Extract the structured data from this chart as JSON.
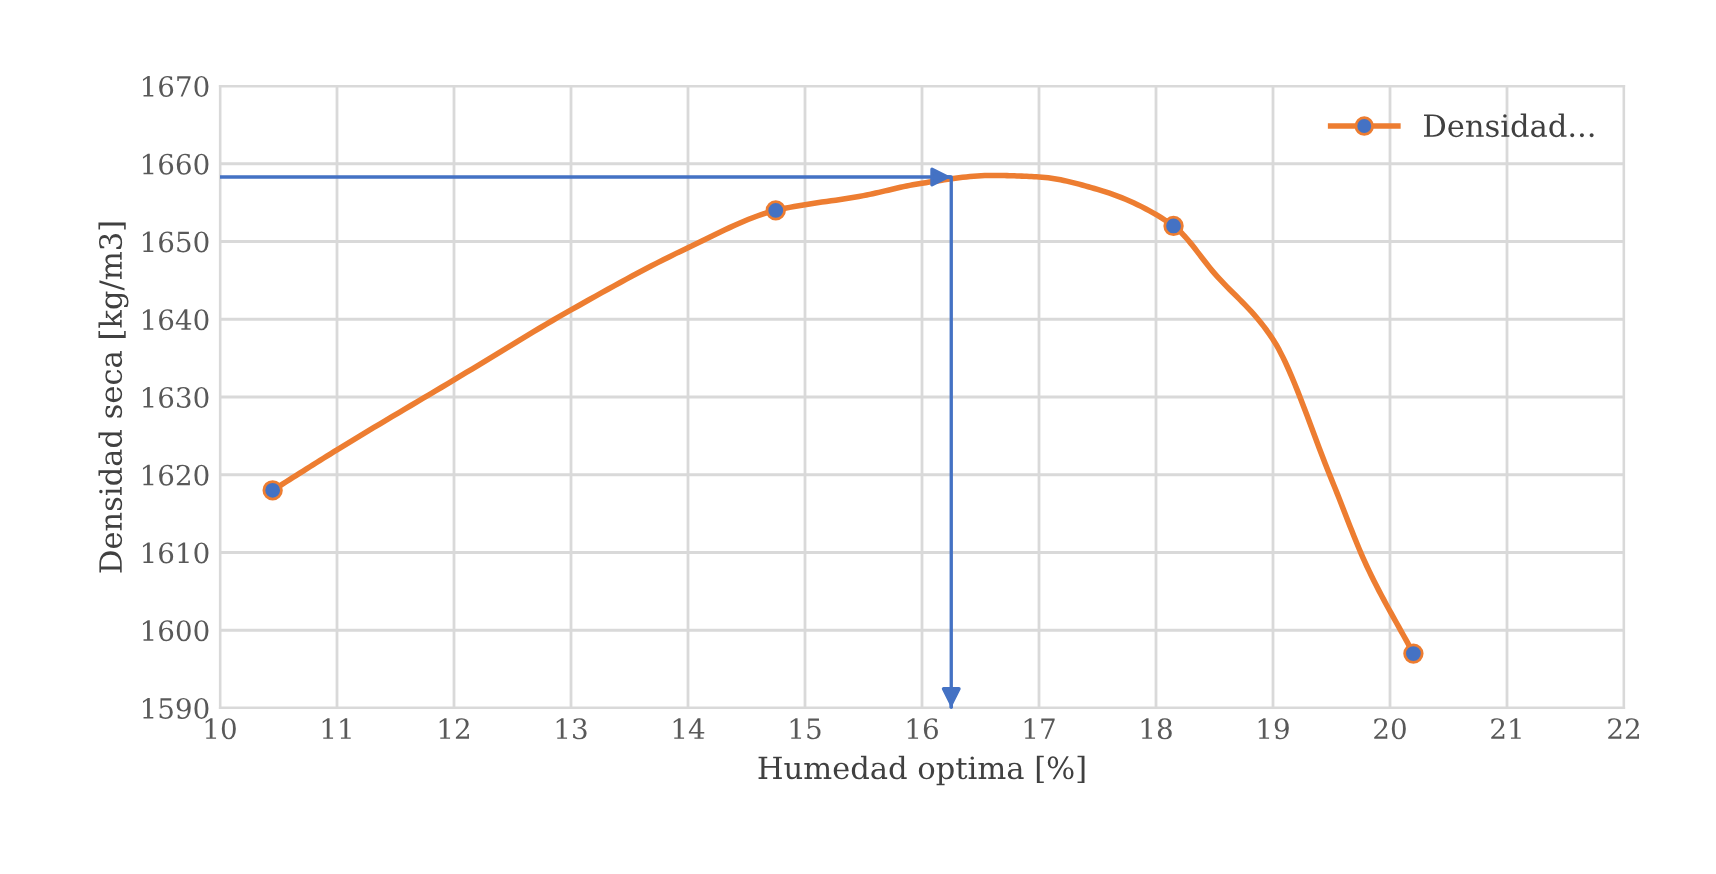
{
  "chart_data": {
    "type": "line",
    "xlabel": "Humedad optima [%]",
    "ylabel": "Densidad seca [kg/m3]",
    "series": [
      {
        "name": "Densidad...",
        "color": "#ed7d31",
        "marker": "none",
        "x": [
          10.45,
          11,
          12,
          13,
          14,
          14.75,
          15.5,
          16,
          16.6,
          17,
          17.5,
          18.15,
          18.5,
          19,
          19.5,
          19.8,
          20.2
        ],
        "values": [
          1618,
          1623.2,
          1632.2,
          1641.2,
          1649.2,
          1654,
          1655.9,
          1657.5,
          1658.5,
          1658.3,
          1656.7,
          1652,
          1645.9,
          1637.4,
          1619.4,
          1608.3,
          1597
        ]
      },
      {
        "type": "scatter",
        "color": "#4472c4",
        "x": [
          10.45,
          14.75,
          18.15,
          20.2
        ],
        "values": [
          1618,
          1654,
          1652,
          1597
        ]
      },
      {
        "type": "line",
        "color": "#4472c4",
        "marker": "none",
        "x": [
          10,
          16.25,
          16.25
        ],
        "values": [
          1658.3,
          1658.3,
          1590
        ]
      }
    ],
    "marker": "circle",
    "line_style": "solid",
    "grid": true,
    "legend": "top right",
    "xlim": [
      10,
      22
    ],
    "xticks": [
      10,
      11,
      12,
      13,
      14,
      15,
      16,
      17,
      18,
      19,
      20,
      21,
      22
    ],
    "ylim": [
      1590,
      1670
    ],
    "yticks": [
      1590,
      1600,
      1610,
      1620,
      1630,
      1640,
      1650,
      1660,
      1670
    ]
  }
}
